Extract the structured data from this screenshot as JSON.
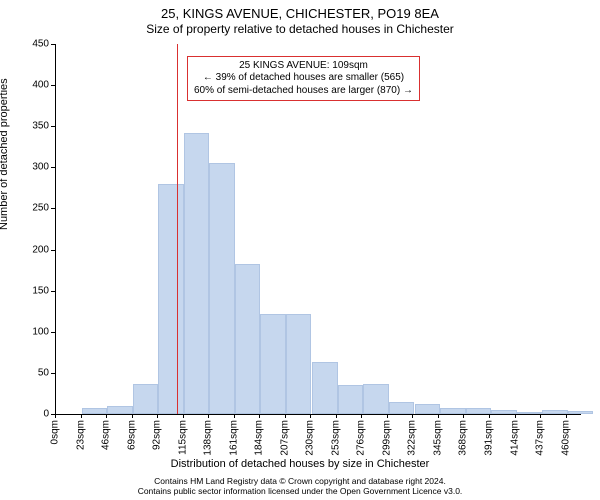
{
  "chart": {
    "type": "histogram",
    "title_line1": "25, KINGS AVENUE, CHICHESTER, PO19 8EA",
    "title_line2": "Size of property relative to detached houses in Chichester",
    "title_fontsize": 13,
    "subtitle_fontsize": 12,
    "ylabel": "Number of detached properties",
    "xlabel": "Distribution of detached houses by size in Chichester",
    "label_fontsize": 11,
    "tick_fontsize": 10,
    "background_color": "#ffffff",
    "axis_color": "#000000",
    "bar_fill": "#c6d7ee",
    "bar_border": "#b0c5e3",
    "bar_border_width": 1,
    "bar_width_ratio": 1.0,
    "vline_color": "#d93030",
    "vline_width": 1,
    "vline_x": 109,
    "xlim": [
      0,
      473
    ],
    "ylim": [
      0,
      450
    ],
    "ytick_step": 50,
    "xtick_step": 23,
    "xtick_suffix": "sqm",
    "n_xticks": 21,
    "annotation": {
      "line1": "25 KINGS AVENUE: 109sqm",
      "line2": "← 39% of detached houses are smaller (565)",
      "line3": "60% of semi-detached houses are larger (870) →",
      "border_color": "#d93030",
      "bg_color": "#ffffff",
      "fontsize": 10,
      "x": 118,
      "y_top": 436
    },
    "bins": [
      {
        "x": 0,
        "count": 0
      },
      {
        "x": 23,
        "count": 7
      },
      {
        "x": 46,
        "count": 10
      },
      {
        "x": 69,
        "count": 36
      },
      {
        "x": 92,
        "count": 280
      },
      {
        "x": 115,
        "count": 342
      },
      {
        "x": 138,
        "count": 305
      },
      {
        "x": 161,
        "count": 183
      },
      {
        "x": 184,
        "count": 122
      },
      {
        "x": 207,
        "count": 122
      },
      {
        "x": 231,
        "count": 63
      },
      {
        "x": 254,
        "count": 35
      },
      {
        "x": 277,
        "count": 37
      },
      {
        "x": 300,
        "count": 15
      },
      {
        "x": 323,
        "count": 12
      },
      {
        "x": 346,
        "count": 7
      },
      {
        "x": 369,
        "count": 7
      },
      {
        "x": 392,
        "count": 5
      },
      {
        "x": 415,
        "count": 3
      },
      {
        "x": 438,
        "count": 5
      },
      {
        "x": 461,
        "count": 4
      }
    ],
    "footer_line1": "Contains HM Land Registry data © Crown copyright and database right 2024.",
    "footer_line2": "Contains public sector information licensed under the Open Government Licence v3.0.",
    "footer_fontsize": 8.5
  }
}
